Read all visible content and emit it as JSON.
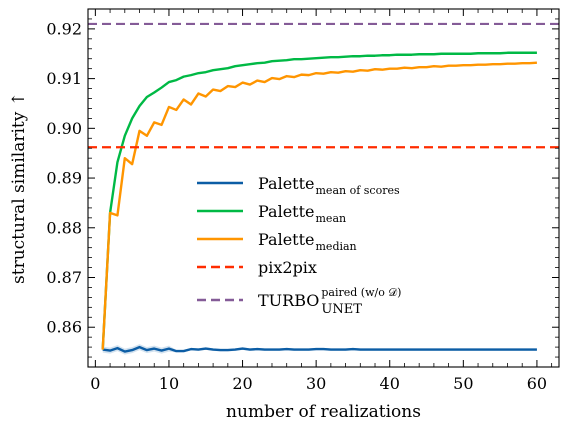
{
  "chart_data": {
    "type": "line",
    "title": "",
    "xlabel": "number of realizations",
    "ylabel": "structural similarity ↑",
    "xlim": [
      -1,
      63
    ],
    "ylim": [
      0.852,
      0.924
    ],
    "x_ticks": [
      0,
      10,
      20,
      30,
      40,
      50,
      60
    ],
    "x_tick_labels": [
      "0",
      "10",
      "20",
      "30",
      "40",
      "50",
      "60"
    ],
    "y_ticks": [
      0.86,
      0.87,
      0.88,
      0.89,
      0.9,
      0.91,
      0.92
    ],
    "y_tick_labels": [
      "0.86",
      "0.87",
      "0.88",
      "0.89",
      "0.90",
      "0.91",
      "0.92"
    ],
    "grid": false,
    "legend_position": "center",
    "series": [
      {
        "key": "mean_of_scores",
        "name": "Palette",
        "subscript": "mean of scores",
        "color": "#0C5DA5",
        "style": "solid",
        "x": [
          1,
          2,
          3,
          4,
          5,
          6,
          7,
          8,
          9,
          10,
          11,
          12,
          13,
          14,
          15,
          16,
          17,
          18,
          19,
          20,
          21,
          22,
          23,
          24,
          25,
          26,
          27,
          28,
          29,
          30,
          31,
          32,
          33,
          34,
          35,
          36,
          37,
          38,
          39,
          40,
          41,
          42,
          43,
          44,
          45,
          46,
          47,
          48,
          49,
          50,
          51,
          52,
          53,
          54,
          55,
          56,
          57,
          58,
          59,
          60
        ],
        "y": [
          0.8555,
          0.8553,
          0.8558,
          0.8551,
          0.8554,
          0.856,
          0.8554,
          0.8557,
          0.8553,
          0.8557,
          0.8552,
          0.8552,
          0.8556,
          0.8555,
          0.8557,
          0.8555,
          0.8554,
          0.8554,
          0.8555,
          0.8557,
          0.8555,
          0.8556,
          0.8555,
          0.8555,
          0.8555,
          0.8556,
          0.8555,
          0.8555,
          0.8555,
          0.8556,
          0.8556,
          0.8555,
          0.8555,
          0.8555,
          0.8556,
          0.8555,
          0.8555,
          0.8555,
          0.8555,
          0.8555,
          0.8555,
          0.8555,
          0.8555,
          0.8555,
          0.8555,
          0.8555,
          0.8555,
          0.8555,
          0.8555,
          0.8555,
          0.8555,
          0.8555,
          0.8555,
          0.8555,
          0.8555,
          0.8555,
          0.8555,
          0.8555,
          0.8555,
          0.8555
        ]
      },
      {
        "key": "mean",
        "name": "Palette",
        "subscript": "mean",
        "color": "#00B945",
        "style": "solid",
        "x": [
          1,
          2,
          3,
          4,
          5,
          6,
          7,
          8,
          9,
          10,
          11,
          12,
          13,
          14,
          15,
          16,
          17,
          18,
          19,
          20,
          21,
          22,
          23,
          24,
          25,
          26,
          27,
          28,
          29,
          30,
          31,
          32,
          33,
          34,
          35,
          36,
          37,
          38,
          39,
          40,
          41,
          42,
          43,
          44,
          45,
          46,
          47,
          48,
          49,
          50,
          51,
          52,
          53,
          54,
          55,
          56,
          57,
          58,
          59,
          60
        ],
        "y": [
          0.8555,
          0.883,
          0.8932,
          0.8985,
          0.902,
          0.9045,
          0.9063,
          0.9072,
          0.9082,
          0.9093,
          0.9097,
          0.9104,
          0.9107,
          0.9111,
          0.9113,
          0.9117,
          0.9119,
          0.9121,
          0.9125,
          0.9127,
          0.9129,
          0.9131,
          0.9132,
          0.9135,
          0.9136,
          0.9137,
          0.9139,
          0.9139,
          0.914,
          0.9141,
          0.9142,
          0.9143,
          0.9143,
          0.9144,
          0.9145,
          0.9145,
          0.9146,
          0.9146,
          0.9147,
          0.9147,
          0.9148,
          0.9148,
          0.9148,
          0.9149,
          0.9149,
          0.9149,
          0.915,
          0.915,
          0.915,
          0.915,
          0.915,
          0.9151,
          0.9151,
          0.9151,
          0.9151,
          0.9152,
          0.9152,
          0.9152,
          0.9152,
          0.9152
        ]
      },
      {
        "key": "median",
        "name": "Palette",
        "subscript": "median",
        "color": "#FF9500",
        "style": "solid",
        "x": [
          1,
          2,
          3,
          4,
          5,
          6,
          7,
          8,
          9,
          10,
          11,
          12,
          13,
          14,
          15,
          16,
          17,
          18,
          19,
          20,
          21,
          22,
          23,
          24,
          25,
          26,
          27,
          28,
          29,
          30,
          31,
          32,
          33,
          34,
          35,
          36,
          37,
          38,
          39,
          40,
          41,
          42,
          43,
          44,
          45,
          46,
          47,
          48,
          49,
          50,
          51,
          52,
          53,
          54,
          55,
          56,
          57,
          58,
          59,
          60
        ],
        "y": [
          0.8555,
          0.883,
          0.8825,
          0.894,
          0.8928,
          0.8995,
          0.8985,
          0.9012,
          0.9007,
          0.9043,
          0.9037,
          0.9058,
          0.9048,
          0.907,
          0.9064,
          0.9078,
          0.9075,
          0.9085,
          0.9083,
          0.9092,
          0.9088,
          0.9096,
          0.9093,
          0.9101,
          0.9099,
          0.9105,
          0.9103,
          0.9108,
          0.9107,
          0.9111,
          0.911,
          0.9113,
          0.9112,
          0.9115,
          0.9114,
          0.9117,
          0.9116,
          0.9119,
          0.9118,
          0.912,
          0.912,
          0.9122,
          0.9121,
          0.9123,
          0.9123,
          0.9125,
          0.9124,
          0.9126,
          0.9126,
          0.9127,
          0.9127,
          0.9128,
          0.9128,
          0.9129,
          0.9129,
          0.913,
          0.913,
          0.9131,
          0.9131,
          0.9132
        ]
      },
      {
        "key": "pix2pix",
        "name": "pix2pix",
        "subscript": "",
        "color": "#FF2C00",
        "style": "dashed",
        "hline": 0.8962
      },
      {
        "key": "turbo",
        "name": "TURBO",
        "subscript": "UNET",
        "superscript": "paired (w/o 𝒟)",
        "color": "#845B97",
        "style": "dashed",
        "hline": 0.921
      }
    ]
  }
}
